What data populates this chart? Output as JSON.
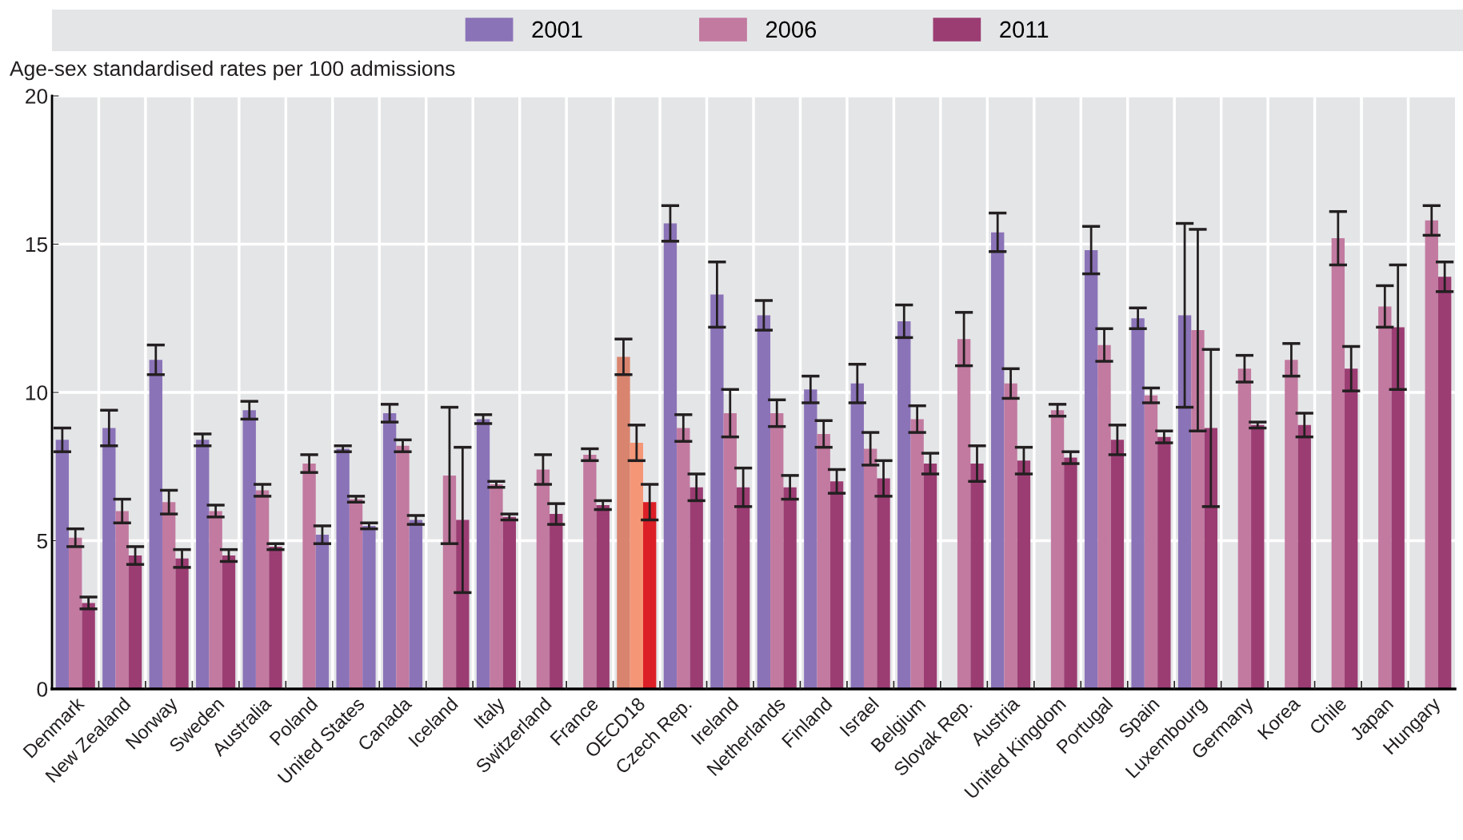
{
  "chart_data": {
    "type": "bar",
    "ylabel": "Age-sex standardised rates per 100 admissions",
    "categories": [
      "Denmark",
      "New Zealand",
      "Norway",
      "Sweden",
      "Australia",
      "Poland",
      "United States",
      "Canada",
      "Iceland",
      "Italy",
      "Switzerland",
      "France",
      "OECD18",
      "Czech Rep.",
      "Ireland",
      "Netherlands",
      "Finland",
      "Israel",
      "Belgium",
      "Slovak Rep.",
      "Austria",
      "United Kingdom",
      "Portugal",
      "Spain",
      "Luxembourg",
      "Germany",
      "Korea",
      "Chile",
      "Japan",
      "Hungary"
    ],
    "series": [
      {
        "name": "2001",
        "color": "#8b73b8",
        "values": [
          8.4,
          8.8,
          11.1,
          8.4,
          9.4,
          null,
          8.1,
          9.3,
          null,
          9.1,
          null,
          null,
          11.2,
          15.7,
          13.3,
          12.6,
          10.1,
          10.3,
          12.4,
          null,
          15.4,
          null,
          14.8,
          12.5,
          12.6,
          null,
          null,
          null,
          null,
          null
        ],
        "errors": [
          0.4,
          0.6,
          0.5,
          0.2,
          0.3,
          null,
          0.1,
          0.3,
          null,
          0.15,
          null,
          null,
          0.6,
          0.6,
          1.1,
          0.5,
          0.45,
          0.65,
          0.55,
          null,
          0.65,
          null,
          0.8,
          0.35,
          3.1,
          null,
          null,
          null,
          null,
          null
        ],
        "colors": [
          "#8b73b8",
          "#8b73b8",
          "#8b73b8",
          "#8b73b8",
          "#8b73b8",
          "#8b73b8",
          "#8b73b8",
          "#8b73b8",
          "#8b73b8",
          "#8b73b8",
          "#8b73b8",
          "#8b73b8",
          "#d9846e",
          "#8b73b8",
          "#8b73b8",
          "#8b73b8",
          "#8b73b8",
          "#8b73b8",
          "#8b73b8",
          "#8b73b8",
          "#8b73b8",
          "#8b73b8",
          "#8b73b8",
          "#8b73b8",
          "#8b73b8",
          "#8b73b8",
          "#8b73b8",
          "#8b73b8",
          "#8b73b8",
          "#8b73b8"
        ]
      },
      {
        "name": "2006",
        "color": "#c27aa0",
        "values": [
          5.1,
          6.0,
          6.3,
          6.0,
          6.7,
          7.6,
          6.4,
          8.2,
          7.2,
          6.9,
          7.4,
          7.9,
          8.3,
          8.8,
          9.3,
          9.3,
          8.6,
          8.1,
          9.1,
          11.8,
          10.3,
          9.4,
          11.6,
          9.9,
          12.1,
          10.8,
          11.1,
          15.2,
          12.9,
          15.8
        ],
        "errors": [
          0.3,
          0.4,
          0.4,
          0.2,
          0.2,
          0.3,
          0.1,
          0.2,
          2.3,
          0.1,
          0.5,
          0.2,
          0.6,
          0.45,
          0.8,
          0.45,
          0.45,
          0.55,
          0.45,
          0.9,
          0.5,
          0.2,
          0.55,
          0.25,
          3.4,
          0.45,
          0.55,
          0.9,
          0.7,
          0.5
        ],
        "colors": [
          "#c27aa0",
          "#c27aa0",
          "#c27aa0",
          "#c27aa0",
          "#c27aa0",
          "#c27aa0",
          "#c27aa0",
          "#c27aa0",
          "#c27aa0",
          "#c27aa0",
          "#c27aa0",
          "#c27aa0",
          "#f59677",
          "#c27aa0",
          "#c27aa0",
          "#c27aa0",
          "#c27aa0",
          "#c27aa0",
          "#c27aa0",
          "#c27aa0",
          "#c27aa0",
          "#c27aa0",
          "#c27aa0",
          "#c27aa0",
          "#c27aa0",
          "#c27aa0",
          "#c27aa0",
          "#c27aa0",
          "#c27aa0",
          "#c27aa0"
        ]
      },
      {
        "name": "2011",
        "color": "#9b3d73",
        "values": [
          2.9,
          4.5,
          4.4,
          4.5,
          4.8,
          5.2,
          5.5,
          5.7,
          5.7,
          5.8,
          5.9,
          6.2,
          6.3,
          6.8,
          6.8,
          6.8,
          7.0,
          7.1,
          7.6,
          7.6,
          7.7,
          7.8,
          8.4,
          8.5,
          8.8,
          8.9,
          8.9,
          10.8,
          12.2,
          13.9
        ],
        "errors": [
          0.2,
          0.3,
          0.3,
          0.2,
          0.1,
          0.3,
          0.1,
          0.15,
          2.45,
          0.1,
          0.35,
          0.15,
          0.6,
          0.45,
          0.65,
          0.4,
          0.4,
          0.6,
          0.35,
          0.6,
          0.45,
          0.2,
          0.5,
          0.2,
          2.65,
          0.1,
          0.4,
          0.75,
          2.1,
          0.5
        ],
        "colors": [
          "#9b3d73",
          "#9b3d73",
          "#9b3d73",
          "#9b3d73",
          "#9b3d73",
          "#8b73b8",
          "#8b73b8",
          "#8b73b8",
          "#9b3d73",
          "#9b3d73",
          "#9b3d73",
          "#9b3d73",
          "#dc1f26",
          "#9b3d73",
          "#9b3d73",
          "#9b3d73",
          "#9b3d73",
          "#9b3d73",
          "#9b3d73",
          "#9b3d73",
          "#9b3d73",
          "#9b3d73",
          "#9b3d73",
          "#9b3d73",
          "#9b3d73",
          "#9b3d73",
          "#9b3d73",
          "#9b3d73",
          "#9b3d73",
          "#9b3d73"
        ]
      }
    ],
    "ylim": [
      0,
      20
    ],
    "yticks": [
      0,
      5,
      10,
      15,
      20
    ],
    "grid": true,
    "legend": "top"
  }
}
